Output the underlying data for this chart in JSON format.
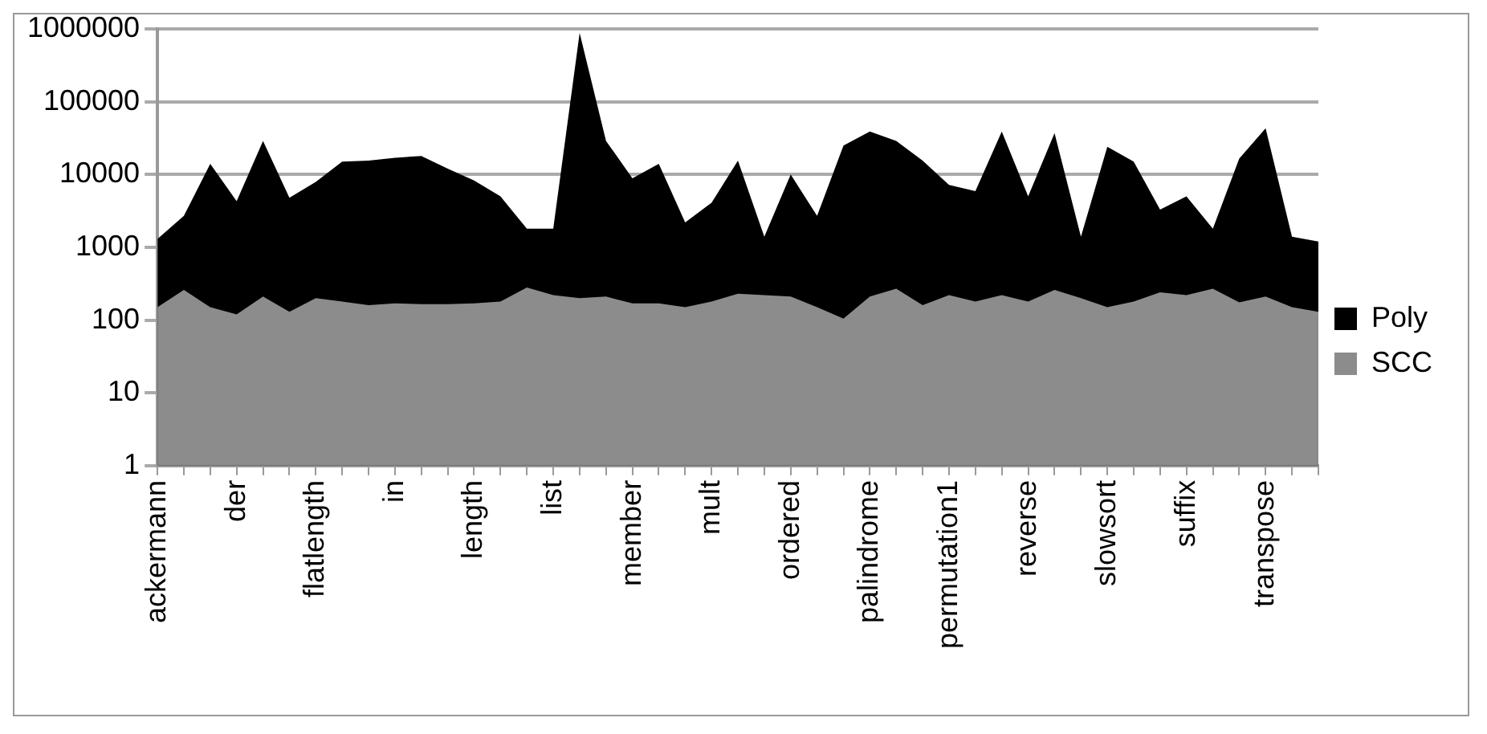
{
  "chart_data": {
    "type": "area",
    "categories": [
      "ackermann",
      null,
      null,
      "der",
      null,
      null,
      "flatlength",
      null,
      null,
      "in",
      null,
      null,
      "length",
      null,
      null,
      "list",
      null,
      null,
      "member",
      null,
      null,
      "mult",
      null,
      null,
      "ordered",
      null,
      null,
      "palindrome",
      null,
      null,
      "permutation1",
      null,
      null,
      "reverse",
      null,
      null,
      "slowsort",
      null,
      null,
      "suffix",
      null,
      null,
      "transpose",
      null,
      null
    ],
    "series": [
      {
        "name": "Poly",
        "color": "#000000",
        "values": [
          1300,
          2700,
          14000,
          4300,
          29000,
          4800,
          7900,
          15000,
          15500,
          17000,
          18000,
          12000,
          8300,
          5000,
          1800,
          1800,
          880000,
          29000,
          8900,
          14000,
          2200,
          4100,
          15500,
          1400,
          10000,
          2700,
          25000,
          39000,
          29000,
          15500,
          7200,
          5900,
          39000,
          5000,
          37000,
          1400,
          24000,
          15000,
          3300,
          5000,
          1800,
          16500,
          43000,
          1400,
          1200
        ]
      },
      {
        "name": "SCC",
        "color": "#8c8c8c",
        "values": [
          150,
          260,
          150,
          120,
          210,
          130,
          200,
          180,
          160,
          170,
          165,
          165,
          170,
          180,
          280,
          220,
          200,
          210,
          170,
          170,
          150,
          180,
          230,
          220,
          210,
          150,
          105,
          210,
          270,
          160,
          220,
          180,
          220,
          180,
          260,
          200,
          150,
          180,
          240,
          220,
          270,
          175,
          210,
          150,
          130
        ]
      }
    ],
    "log": "y",
    "ylim": [
      1,
      1000000
    ],
    "yticks": [
      1,
      10,
      100,
      1000,
      10000,
      100000,
      1000000
    ],
    "grid": "y",
    "legend": "right"
  }
}
